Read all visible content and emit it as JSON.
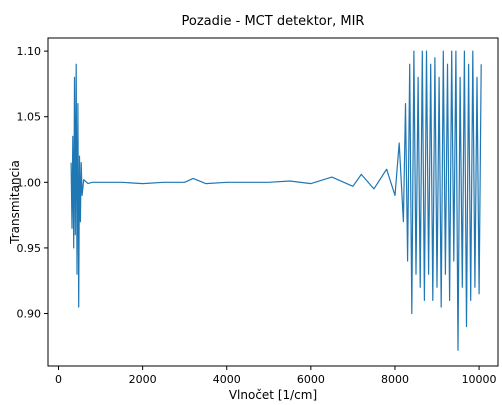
{
  "chart_data": {
    "type": "line",
    "title": "Pozadie - MCT detektor, MIR",
    "xlabel": "Vlnočet [1/cm]",
    "ylabel": "Transmitancia",
    "xlim": [
      -250,
      10450
    ],
    "ylim": [
      0.86,
      1.11
    ],
    "xticks": [
      0,
      2000,
      4000,
      6000,
      8000,
      10000
    ],
    "yticks": [
      0.9,
      0.95,
      1.0,
      1.05,
      1.1
    ],
    "xtick_labels": [
      "0",
      "2000",
      "4000",
      "6000",
      "8000",
      "10000"
    ],
    "ytick_labels": [
      "0.90",
      "0.95",
      "1.00",
      "1.05",
      "1.10"
    ],
    "grid": false,
    "color": "#1f77b4",
    "series": [
      {
        "name": "",
        "x": [
          300,
          320,
          340,
          360,
          380,
          400,
          420,
          440,
          460,
          480,
          500,
          520,
          540,
          560,
          600,
          700,
          800,
          1000,
          1500,
          2000,
          2500,
          3000,
          3200,
          3500,
          4000,
          4500,
          5000,
          5500,
          6000,
          6500,
          7000,
          7200,
          7500,
          7800,
          8000,
          8100,
          8200,
          8250,
          8300,
          8350,
          8400,
          8450,
          8500,
          8550,
          8600,
          8650,
          8700,
          8750,
          8800,
          8850,
          8900,
          8950,
          9000,
          9050,
          9100,
          9150,
          9200,
          9250,
          9300,
          9350,
          9400,
          9450,
          9500,
          9550,
          9600,
          9650,
          9700,
          9750,
          9800,
          9850,
          9900,
          9950,
          10000,
          10050
        ],
        "y": [
          1.015,
          0.965,
          1.035,
          0.95,
          1.08,
          0.96,
          1.09,
          0.93,
          1.06,
          0.905,
          1.02,
          0.97,
          1.015,
          0.99,
          1.002,
          0.999,
          1.0,
          1.0,
          1.0,
          0.999,
          1.0,
          1.0,
          1.003,
          0.999,
          1.0,
          1.0,
          1.0,
          1.001,
          0.999,
          1.004,
          0.997,
          1.006,
          0.995,
          1.01,
          0.99,
          1.03,
          0.97,
          1.06,
          0.94,
          1.09,
          0.9,
          1.1,
          0.93,
          1.08,
          0.92,
          1.1,
          0.91,
          1.1,
          0.93,
          1.09,
          0.91,
          1.095,
          0.92,
          1.08,
          0.905,
          1.1,
          0.93,
          1.09,
          0.91,
          1.1,
          0.94,
          1.1,
          0.872,
          1.08,
          0.92,
          1.1,
          0.89,
          1.09,
          0.91,
          1.1,
          0.92,
          1.08,
          0.915,
          1.09
        ]
      }
    ]
  }
}
